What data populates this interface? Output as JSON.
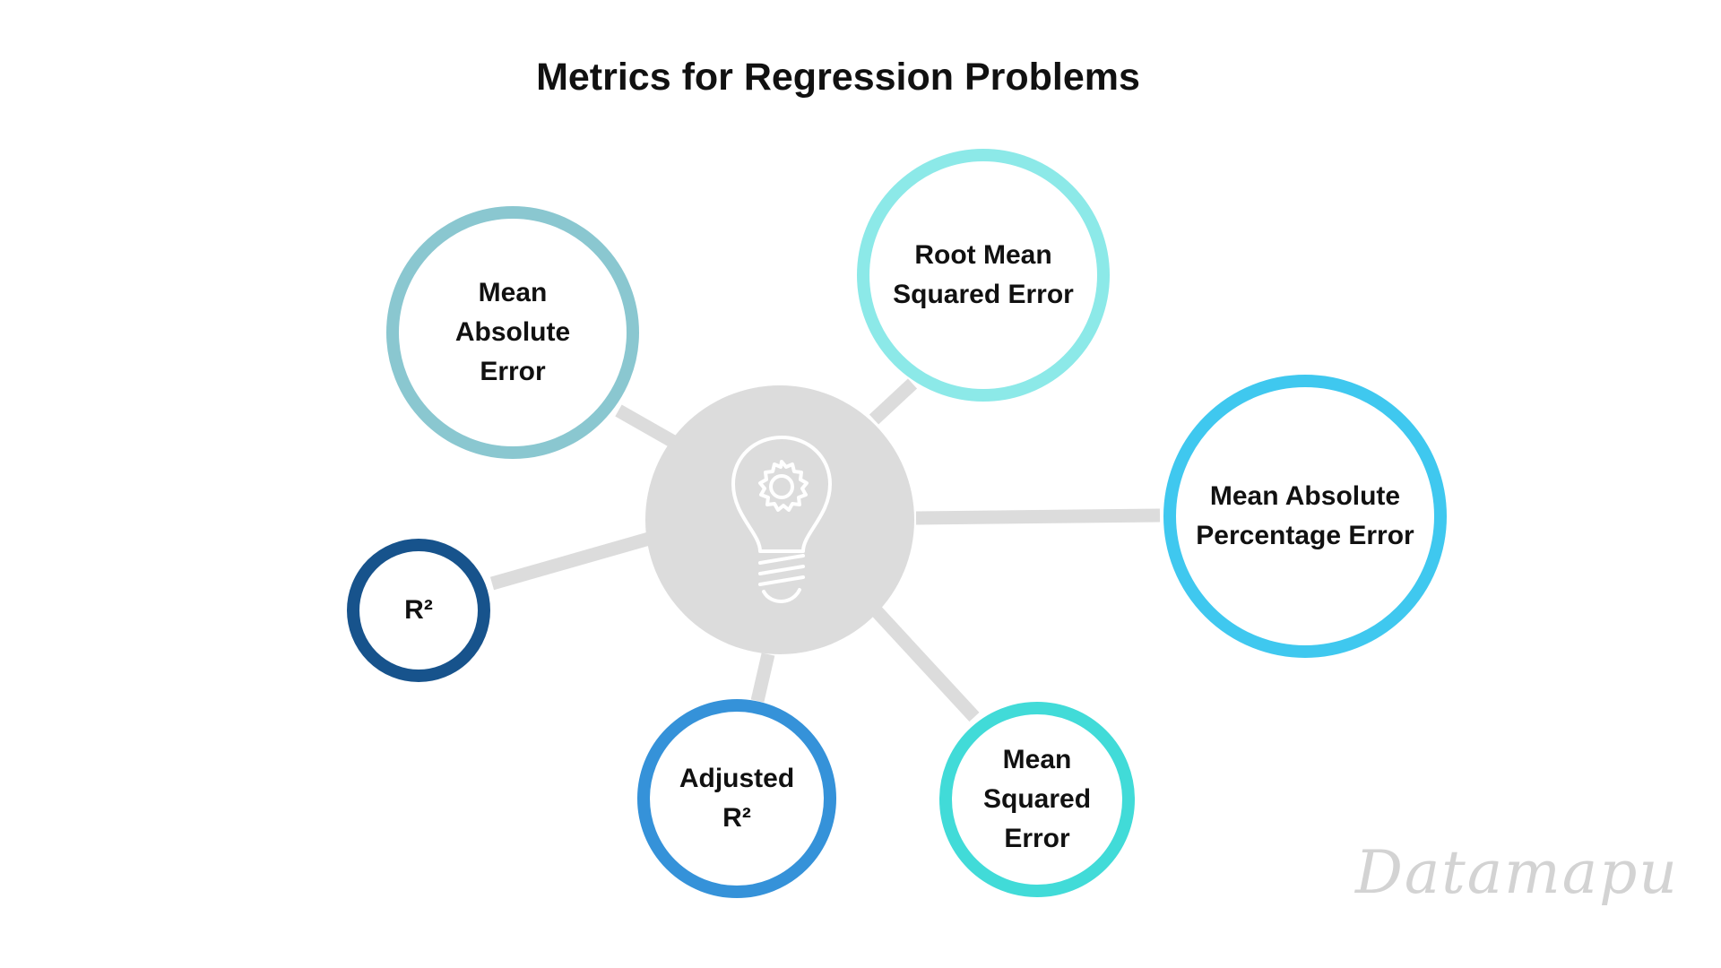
{
  "title": "Metrics for Regression Problems",
  "hub": {
    "icon": "lightbulb-gear-icon",
    "fill_color": "#dcdcdc",
    "icon_color": "#ffffff"
  },
  "connector_color": "#dcdcdc",
  "nodes": [
    {
      "id": "mae",
      "label": "Mean\nAbsolute\nError",
      "ring_color": "#8ac7d0"
    },
    {
      "id": "rmse",
      "label": "Root Mean\nSquared Error",
      "ring_color": "#8ce9e8"
    },
    {
      "id": "mape",
      "label": "Mean Absolute\nPercentage Error",
      "ring_color": "#3fc8ef"
    },
    {
      "id": "mse",
      "label": "Mean\nSquared\nError",
      "ring_color": "#41dbd8"
    },
    {
      "id": "adjusted-r2",
      "label": "Adjusted\nR²",
      "ring_color": "#3592d9"
    },
    {
      "id": "r2",
      "label": "R²",
      "ring_color": "#17538c"
    }
  ],
  "watermark": "Datamapu"
}
